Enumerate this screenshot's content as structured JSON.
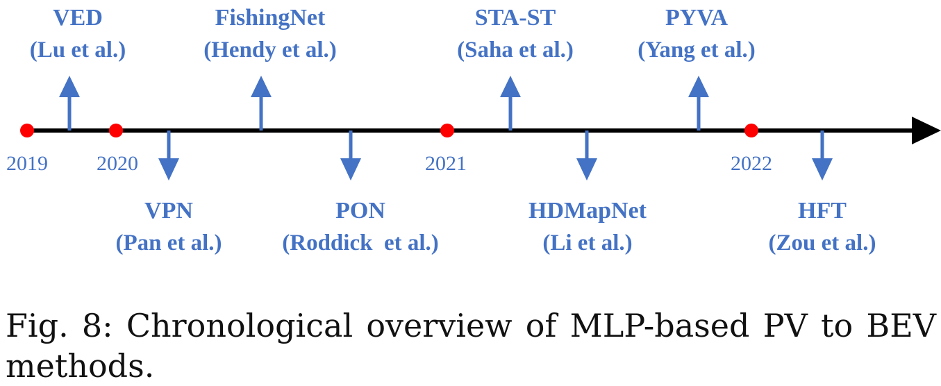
{
  "colors": {
    "accent": "#4472C4",
    "year_marker": "#FF0000",
    "axis": "#000000"
  },
  "years": [
    "2019",
    "2020",
    "2021",
    "2022"
  ],
  "methods": [
    {
      "name": "VED",
      "authors": "(Lu et al.)",
      "direction": "up"
    },
    {
      "name": "VPN",
      "authors": "(Pan et al.)",
      "direction": "down"
    },
    {
      "name": "FishingNet",
      "authors": "(Hendy et al.)",
      "direction": "up"
    },
    {
      "name": "PON",
      "authors": "(Roddick  et al.)",
      "direction": "down"
    },
    {
      "name": "STA-ST",
      "authors": "(Saha et al.)",
      "direction": "up"
    },
    {
      "name": "HDMapNet",
      "authors": "(Li et al.)",
      "direction": "down"
    },
    {
      "name": "PYVA",
      "authors": "(Yang et al.)",
      "direction": "up"
    },
    {
      "name": "HFT",
      "authors": "(Zou et al.)",
      "direction": "down"
    }
  ],
  "caption": "Fig. 8: Chronological overview of MLP-based PV to BEV methods."
}
